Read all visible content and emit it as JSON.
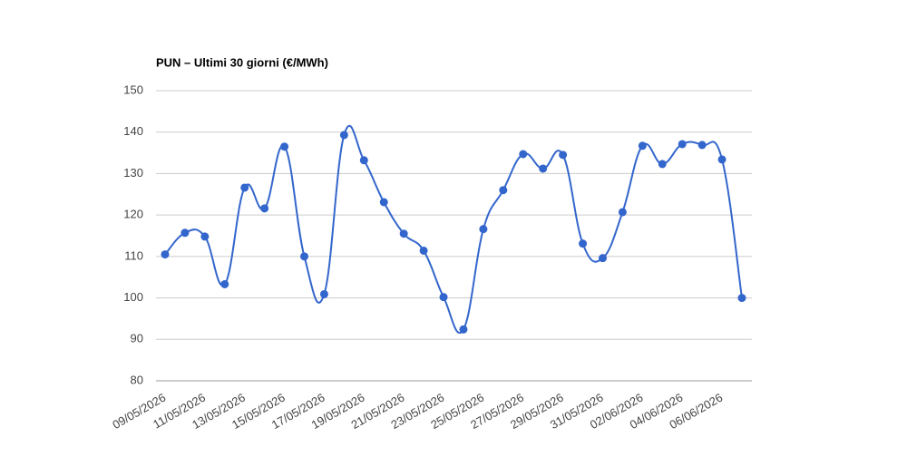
{
  "chart_data": {
    "type": "line",
    "title": "PUN – Ultimi 30 giorni (€/MWh)",
    "categories": [
      "09/05/2026",
      null,
      "11/05/2026",
      null,
      "13/05/2026",
      null,
      "15/05/2026",
      null,
      "17/05/2026",
      null,
      "19/05/2026",
      null,
      "21/05/2026",
      null,
      "23/05/2026",
      null,
      "25/05/2026",
      null,
      "27/05/2026",
      null,
      "29/05/2026",
      null,
      "31/05/2026",
      null,
      "02/06/2026",
      null,
      "04/06/2026",
      null,
      "06/06/2026",
      null
    ],
    "values": [
      110.5,
      115.7,
      114.8,
      103.3,
      126.6,
      121.6,
      136.5,
      110.0,
      100.9,
      139.3,
      133.2,
      123.1,
      115.5,
      111.4,
      100.2,
      92.4,
      116.6,
      126.0,
      134.7,
      131.2,
      134.5,
      113.1,
      109.6,
      120.7,
      136.7,
      132.3,
      137.1,
      136.9,
      133.4,
      100.0
    ],
    "color": "#3366cc",
    "ylim": [
      80,
      150
    ],
    "yticks": [
      80,
      90,
      100,
      110,
      120,
      130,
      140,
      150
    ],
    "grid": true
  }
}
